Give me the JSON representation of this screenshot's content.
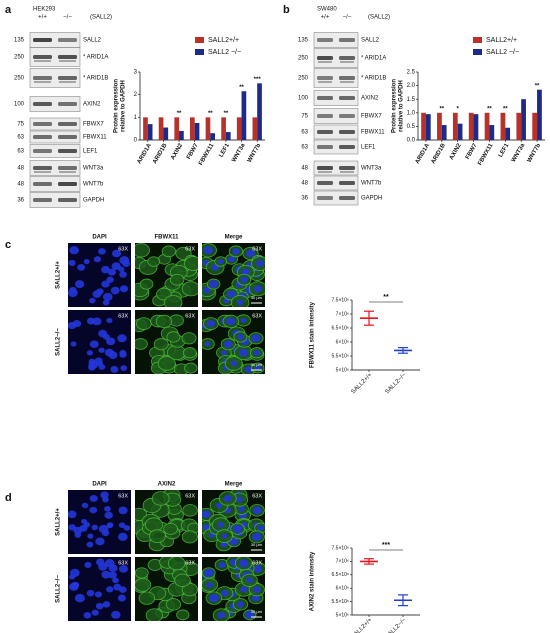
{
  "panel_labels": [
    "a",
    "b",
    "c",
    "d"
  ],
  "blots": [
    {
      "cell_line": "HEK293",
      "genotypes": [
        "+/+",
        "−/−"
      ],
      "gene_note": "(SALL2)",
      "rows": [
        {
          "marker": "135",
          "protein": "SALL2"
        },
        {
          "marker": "250",
          "protein": "* ARID1A"
        },
        {
          "marker": "250",
          "protein": "* ARID1B"
        },
        {
          "marker": "100",
          "protein": "AXIN2"
        },
        {
          "marker": "75",
          "protein": "FBWX7"
        },
        {
          "marker": "63",
          "protein": "FBWX11"
        },
        {
          "marker": "63",
          "protein": "LEF1"
        },
        {
          "marker": "48",
          "protein": "WNT3a"
        },
        {
          "marker": "48",
          "protein": "WNT7b"
        },
        {
          "marker": "36",
          "protein": "GAPDH"
        }
      ]
    },
    {
      "cell_line": "SW480",
      "genotypes": [
        "+/+",
        "−/−"
      ],
      "gene_note": "(SALL2)",
      "rows": [
        {
          "marker": "135",
          "protein": "SALL2"
        },
        {
          "marker": "250",
          "protein": "* ARID1A"
        },
        {
          "marker": "250",
          "protein": "* ARID1B"
        },
        {
          "marker": "100",
          "protein": "AXIN2"
        },
        {
          "marker": "75",
          "protein": "FBWX7"
        },
        {
          "marker": "63",
          "protein": "FBWX11"
        },
        {
          "marker": "63",
          "protein": "LEF1"
        },
        {
          "marker": "48",
          "protein": "WNT3a"
        },
        {
          "marker": "48",
          "protein": "WNT7b"
        },
        {
          "marker": "36",
          "protein": "GAPDH"
        }
      ]
    }
  ],
  "micrographs": [
    {
      "columns": [
        "DAPI",
        "FBWX11",
        "Merge"
      ],
      "rows": [
        "SALL2+/+",
        "SALL2−/−"
      ],
      "magnification": "63X",
      "scale_bar": "30 µm"
    },
    {
      "columns": [
        "DAPI",
        "AXIN2",
        "Merge"
      ],
      "rows": [
        "SALL2+/+",
        "SALL2−/−"
      ],
      "magnification": "63X",
      "scale_bar": "30 µm"
    }
  ],
  "chart_data": [
    {
      "type": "bar",
      "ylabel": [
        "Protein expression",
        "relative to GAPDH"
      ],
      "categories": [
        "ARID1A",
        "ARID1B",
        "AXIN2",
        "FBW7",
        "FBWX11",
        "LEF1",
        "WNT3a",
        "WNT7b"
      ],
      "series": [
        {
          "name": "SALL2+/+",
          "color": "#b8322a",
          "values": [
            1,
            1,
            1,
            1,
            1,
            1,
            1,
            1
          ]
        },
        {
          "name": "SALL2 −/−",
          "color": "#1c2a8a",
          "values": [
            0.7,
            0.55,
            0.4,
            0.75,
            0.3,
            0.35,
            2.15,
            2.5
          ]
        }
      ],
      "significance": [
        null,
        null,
        "**",
        null,
        "**",
        "**",
        "**",
        "***"
      ],
      "ylim": [
        0,
        3
      ],
      "yticks": [
        0,
        1,
        2,
        3
      ]
    },
    {
      "type": "bar",
      "ylabel": [
        "Protein expression",
        "relative to GAPDH"
      ],
      "categories": [
        "ARID1A",
        "ARID1B",
        "AXIN2",
        "FBW7",
        "FBWX11",
        "LEF1",
        "WNT3a",
        "WNT7b"
      ],
      "series": [
        {
          "name": "SALL2+/+",
          "color": "#b8322a",
          "values": [
            1,
            1,
            1,
            1,
            1,
            1,
            1,
            1
          ]
        },
        {
          "name": "SALL2 −/−",
          "color": "#1c2a8a",
          "values": [
            0.95,
            0.55,
            0.6,
            0.95,
            0.55,
            0.45,
            1.5,
            1.85
          ]
        }
      ],
      "significance": [
        null,
        "**",
        "*",
        null,
        "**",
        "**",
        null,
        "**"
      ],
      "ylim": [
        0,
        2.5
      ],
      "yticks": [
        {
          "value": 0,
          "label": "0.0"
        },
        {
          "value": 0.5,
          "label": "0.5"
        },
        {
          "value": 1,
          "label": "1.0"
        },
        {
          "value": 1.5,
          "label": "1.5"
        },
        {
          "value": 2,
          "label": "2.0"
        },
        {
          "value": 2.5,
          "label": "2.5"
        }
      ]
    },
    {
      "type": "errorbar",
      "ylabel": "FBWX11 stain intensity",
      "categories": [
        "SALL2+/+",
        "SALL2−/−"
      ],
      "values": [
        6850000,
        5700000
      ],
      "errors": [
        250000,
        100000
      ],
      "colors": [
        "#e8141c",
        "#1f3fd1"
      ],
      "significance": "**",
      "ylim": [
        5000000,
        7500000
      ],
      "yticks": [
        {
          "value": 5000000,
          "label": "5×10⁶"
        },
        {
          "value": 5500000,
          "label": "5.5×10⁶"
        },
        {
          "value": 6000000,
          "label": "6×10⁶"
        },
        {
          "value": 6500000,
          "label": "6.5×10⁶"
        },
        {
          "value": 7000000,
          "label": "7×10⁶"
        },
        {
          "value": 7500000,
          "label": "7.5×10⁶"
        }
      ]
    },
    {
      "type": "errorbar",
      "ylabel": "AXIN2 stain intensity",
      "categories": [
        "SALL2+/+",
        "SALL2−/−"
      ],
      "values": [
        7000000,
        5550000
      ],
      "errors": [
        100000,
        200000
      ],
      "colors": [
        "#e8141c",
        "#1f3fd1"
      ],
      "significance": "***",
      "ylim": [
        5000000,
        7500000
      ],
      "yticks": [
        {
          "value": 5000000,
          "label": "5×10⁶"
        },
        {
          "value": 5500000,
          "label": "5.5×10⁶"
        },
        {
          "value": 6000000,
          "label": "6×10⁶"
        },
        {
          "value": 6500000,
          "label": "6.5×10⁶"
        },
        {
          "value": 7000000,
          "label": "7×10⁶"
        },
        {
          "value": 7500000,
          "label": "7.5×10⁶"
        }
      ]
    }
  ]
}
